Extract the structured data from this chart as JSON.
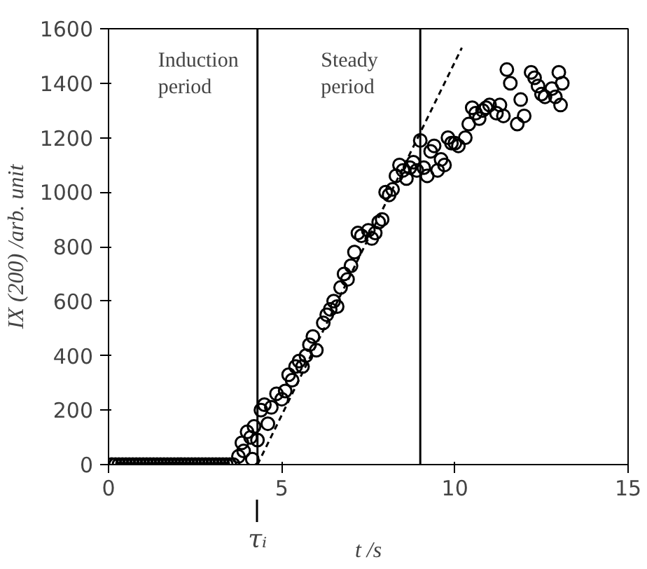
{
  "chart_data": {
    "type": "scatter",
    "xlabel": "t /s",
    "ylabel": "IX (200) /arb. unit",
    "xlim": [
      0,
      15
    ],
    "ylim": [
      0,
      1600
    ],
    "xticks": [
      0,
      5,
      10,
      15
    ],
    "yticks": [
      0,
      200,
      400,
      600,
      800,
      1000,
      1200,
      1400,
      1600
    ],
    "grid": false,
    "series": [
      {
        "color": "#000000",
        "marker": "circle",
        "x": [
          0.1,
          0.2,
          0.3,
          0.4,
          0.5,
          0.6,
          0.7,
          0.8,
          0.9,
          1.0,
          1.1,
          1.2,
          1.3,
          1.4,
          1.5,
          1.6,
          1.7,
          1.8,
          1.9,
          2.0,
          2.1,
          2.2,
          2.3,
          2.4,
          2.5,
          2.6,
          2.7,
          2.8,
          2.9,
          3.0,
          3.1,
          3.2,
          3.3,
          3.4,
          3.5,
          3.6,
          3.75,
          3.85,
          3.9,
          4.0,
          4.1,
          4.15,
          4.2,
          4.3,
          4.4,
          4.5,
          4.6,
          4.7,
          4.85,
          5.0,
          5.1,
          5.2,
          5.3,
          5.4,
          5.5,
          5.6,
          5.7,
          5.8,
          5.9,
          6.0,
          6.2,
          6.3,
          6.4,
          6.5,
          6.6,
          6.7,
          6.8,
          6.9,
          7.0,
          7.1,
          7.2,
          7.3,
          7.5,
          7.6,
          7.7,
          7.8,
          7.9,
          8.0,
          8.1,
          8.2,
          8.3,
          8.4,
          8.5,
          8.6,
          8.7,
          8.8,
          8.9,
          9.0,
          9.1,
          9.2,
          9.3,
          9.4,
          9.5,
          9.6,
          9.7,
          9.8,
          9.9,
          10.0,
          10.1,
          10.3,
          10.4,
          10.5,
          10.6,
          10.7,
          10.8,
          10.9,
          11.0,
          11.2,
          11.3,
          11.4,
          11.5,
          11.6,
          11.8,
          11.9,
          12.0,
          12.2,
          12.3,
          12.4,
          12.5,
          12.6,
          12.8,
          12.9,
          13.0,
          13.05,
          13.1
        ],
        "values": [
          0,
          0,
          0,
          0,
          0,
          0,
          0,
          0,
          0,
          0,
          0,
          0,
          0,
          0,
          0,
          0,
          0,
          0,
          0,
          0,
          0,
          0,
          0,
          0,
          0,
          0,
          0,
          0,
          0,
          0,
          0,
          0,
          0,
          0,
          0,
          0,
          30,
          80,
          50,
          120,
          100,
          20,
          140,
          90,
          200,
          220,
          150,
          210,
          260,
          240,
          270,
          330,
          310,
          360,
          380,
          360,
          400,
          440,
          470,
          420,
          520,
          550,
          570,
          600,
          580,
          650,
          700,
          680,
          730,
          780,
          850,
          840,
          860,
          830,
          850,
          890,
          900,
          1000,
          990,
          1010,
          1060,
          1100,
          1080,
          1050,
          1090,
          1110,
          1080,
          1190,
          1090,
          1060,
          1150,
          1170,
          1080,
          1120,
          1100,
          1200,
          1180,
          1180,
          1170,
          1200,
          1250,
          1310,
          1290,
          1270,
          1300,
          1310,
          1320,
          1290,
          1320,
          1280,
          1450,
          1400,
          1250,
          1340,
          1280,
          1440,
          1420,
          1390,
          1360,
          1350,
          1380,
          1350,
          1440,
          1320,
          1400
        ]
      },
      {
        "type": "line",
        "color": "#000000",
        "line_style": "dashed",
        "x": [
          4.3,
          10.2
        ],
        "values": [
          0,
          1530
        ]
      }
    ],
    "ref_lines": [
      {
        "axis": "x",
        "value": 4.3,
        "label": "Induction\nperiod",
        "color": "#000000"
      },
      {
        "axis": "x",
        "value": 9,
        "label": "Steady\nperiod",
        "color": "#000000"
      }
    ],
    "annotations": [
      "τᵢ"
    ]
  }
}
